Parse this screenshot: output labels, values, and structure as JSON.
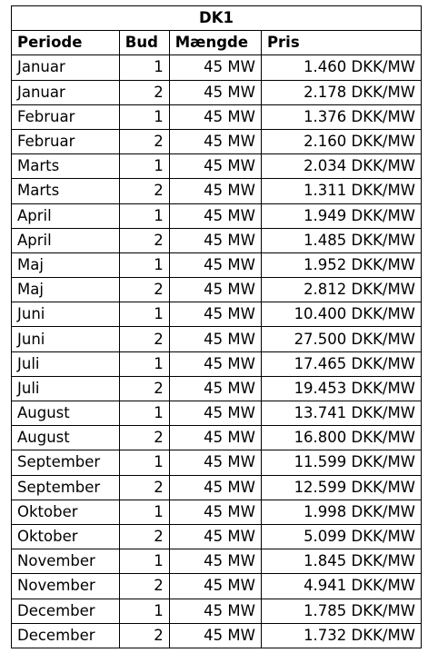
{
  "table": {
    "title": "DK1",
    "headers": {
      "periode": "Periode",
      "bud": "Bud",
      "maengde": "Mængde",
      "pris": "Pris"
    },
    "rows": [
      {
        "periode": "Januar",
        "bud": "1",
        "maengde": "45 MW",
        "pris": "1.460 DKK/MW"
      },
      {
        "periode": "Januar",
        "bud": "2",
        "maengde": "45 MW",
        "pris": "2.178 DKK/MW"
      },
      {
        "periode": "Februar",
        "bud": "1",
        "maengde": "45 MW",
        "pris": "1.376 DKK/MW"
      },
      {
        "periode": "Februar",
        "bud": "2",
        "maengde": "45 MW",
        "pris": "2.160 DKK/MW"
      },
      {
        "periode": "Marts",
        "bud": "1",
        "maengde": "45 MW",
        "pris": "2.034 DKK/MW"
      },
      {
        "periode": "Marts",
        "bud": "2",
        "maengde": "45 MW",
        "pris": "1.311 DKK/MW"
      },
      {
        "periode": "April",
        "bud": "1",
        "maengde": "45 MW",
        "pris": "1.949 DKK/MW"
      },
      {
        "periode": "April",
        "bud": "2",
        "maengde": "45 MW",
        "pris": "1.485 DKK/MW"
      },
      {
        "periode": "Maj",
        "bud": "1",
        "maengde": "45 MW",
        "pris": "1.952 DKK/MW"
      },
      {
        "periode": "Maj",
        "bud": "2",
        "maengde": "45 MW",
        "pris": "2.812 DKK/MW"
      },
      {
        "periode": "Juni",
        "bud": "1",
        "maengde": "45 MW",
        "pris": "10.400 DKK/MW"
      },
      {
        "periode": "Juni",
        "bud": "2",
        "maengde": "45 MW",
        "pris": "27.500 DKK/MW"
      },
      {
        "periode": "Juli",
        "bud": "1",
        "maengde": "45 MW",
        "pris": "17.465 DKK/MW"
      },
      {
        "periode": "Juli",
        "bud": "2",
        "maengde": "45 MW",
        "pris": "19.453 DKK/MW"
      },
      {
        "periode": "August",
        "bud": "1",
        "maengde": "45 MW",
        "pris": "13.741 DKK/MW"
      },
      {
        "periode": "August",
        "bud": "2",
        "maengde": "45 MW",
        "pris": "16.800 DKK/MW"
      },
      {
        "periode": "September",
        "bud": "1",
        "maengde": "45 MW",
        "pris": "11.599 DKK/MW"
      },
      {
        "periode": "September",
        "bud": "2",
        "maengde": "45 MW",
        "pris": "12.599 DKK/MW"
      },
      {
        "periode": "Oktober",
        "bud": "1",
        "maengde": "45 MW",
        "pris": "1.998 DKK/MW"
      },
      {
        "periode": "Oktober",
        "bud": "2",
        "maengde": "45 MW",
        "pris": "5.099 DKK/MW"
      },
      {
        "periode": "November",
        "bud": "1",
        "maengde": "45 MW",
        "pris": "1.845 DKK/MW"
      },
      {
        "periode": "November",
        "bud": "2",
        "maengde": "45 MW",
        "pris": "4.941 DKK/MW"
      },
      {
        "periode": "December",
        "bud": "1",
        "maengde": "45 MW",
        "pris": "1.785 DKK/MW"
      },
      {
        "periode": "December",
        "bud": "2",
        "maengde": "45 MW",
        "pris": "1.732 DKK/MW"
      }
    ]
  }
}
